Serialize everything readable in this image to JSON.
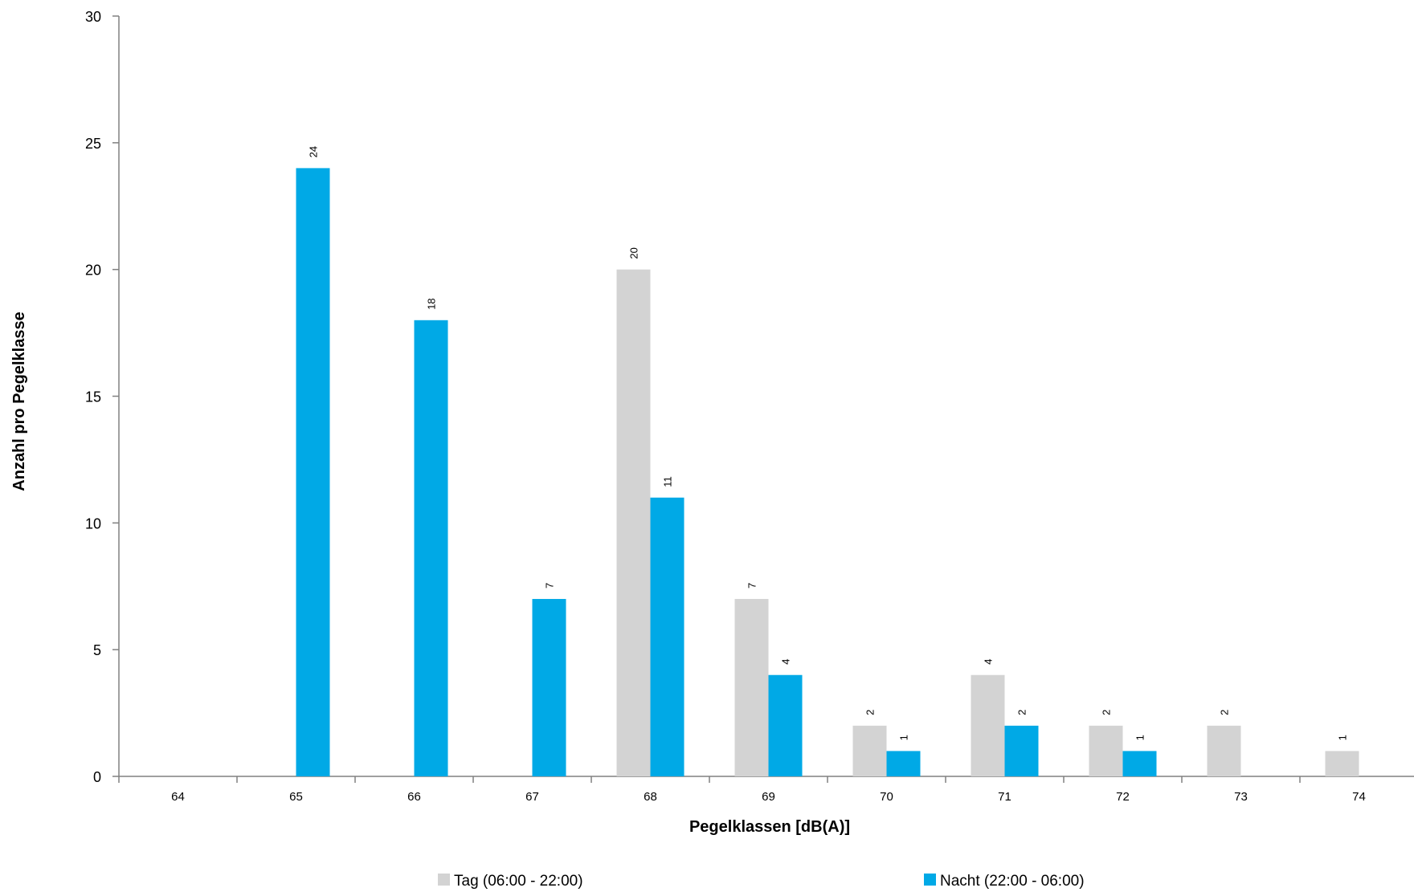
{
  "chart_data": {
    "type": "bar",
    "xlabel": "Pegelklassen [dB(A)]",
    "ylabel": "Anzahl pro Pegelklasse",
    "categories": [
      "64",
      "65",
      "66",
      "67",
      "68",
      "69",
      "70",
      "71",
      "72",
      "73",
      "74"
    ],
    "series": [
      {
        "name": "Tag (06:00 - 22:00)",
        "color": "#d3d3d3",
        "values": [
          0,
          0,
          0,
          0,
          20,
          7,
          2,
          4,
          2,
          2,
          1
        ]
      },
      {
        "name": "Nacht (22:00 - 06:00)",
        "color": "#00a9e6",
        "values": [
          0,
          24,
          18,
          7,
          11,
          4,
          1,
          2,
          1,
          0,
          0
        ]
      }
    ],
    "ylim": [
      0,
      30
    ],
    "yticks": [
      0,
      5,
      10,
      15,
      20,
      25,
      30
    ],
    "grid": false,
    "legend_position": "bottom"
  }
}
